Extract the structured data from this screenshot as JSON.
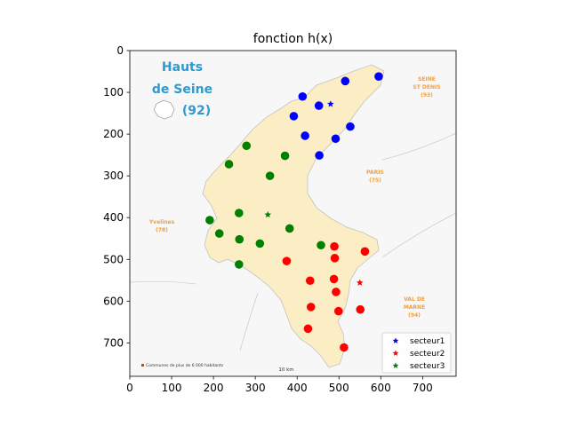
{
  "chart_data": {
    "type": "scatter",
    "title": "fonction h(x)",
    "xlim": [
      0,
      780
    ],
    "ylim": [
      780,
      0
    ],
    "y_inverted": true,
    "xticks": [
      0,
      100,
      200,
      300,
      400,
      500,
      600,
      700
    ],
    "yticks": [
      0,
      100,
      200,
      300,
      400,
      500,
      600,
      700
    ],
    "legend_position": "lower-right",
    "background_map": {
      "title_line1": "Hauts",
      "title_line2": "de Seine",
      "title_line3": "(92)",
      "labels": [
        {
          "lines": [
            "SEINE",
            "ST DENIS",
            "(93)"
          ]
        },
        {
          "lines": [
            "PARIS",
            "(75)"
          ]
        },
        {
          "lines": [
            "Yvelines",
            "(78)"
          ]
        },
        {
          "lines": [
            "VAL DE",
            "MARNE",
            "(94)"
          ]
        }
      ],
      "scale_note": "10 km",
      "footnote": "Communes de plus de 6 000 habitants"
    },
    "series": [
      {
        "name": "secteur1",
        "color": "#0000ff",
        "centroid": [
          480,
          128
        ],
        "points": [
          [
            595,
            62
          ],
          [
            515,
            73
          ],
          [
            413,
            110
          ],
          [
            452,
            132
          ],
          [
            392,
            157
          ],
          [
            527,
            182
          ],
          [
            419,
            204
          ],
          [
            492,
            211
          ],
          [
            453,
            251
          ]
        ]
      },
      {
        "name": "secteur2",
        "color": "#ff0000",
        "centroid": [
          550,
          556
        ],
        "points": [
          [
            489,
            469
          ],
          [
            562,
            481
          ],
          [
            490,
            497
          ],
          [
            375,
            504
          ],
          [
            488,
            547
          ],
          [
            431,
            551
          ],
          [
            493,
            578
          ],
          [
            433,
            614
          ],
          [
            499,
            624
          ],
          [
            551,
            620
          ],
          [
            426,
            666
          ],
          [
            512,
            711
          ]
        ]
      },
      {
        "name": "secteur3",
        "color": "#008000",
        "centroid": [
          330,
          393
        ],
        "points": [
          [
            279,
            228
          ],
          [
            371,
            252
          ],
          [
            237,
            272
          ],
          [
            335,
            300
          ],
          [
            261,
            389
          ],
          [
            191,
            406
          ],
          [
            382,
            426
          ],
          [
            214,
            438
          ],
          [
            262,
            452
          ],
          [
            311,
            462
          ],
          [
            457,
            466
          ],
          [
            261,
            512
          ]
        ]
      }
    ]
  }
}
